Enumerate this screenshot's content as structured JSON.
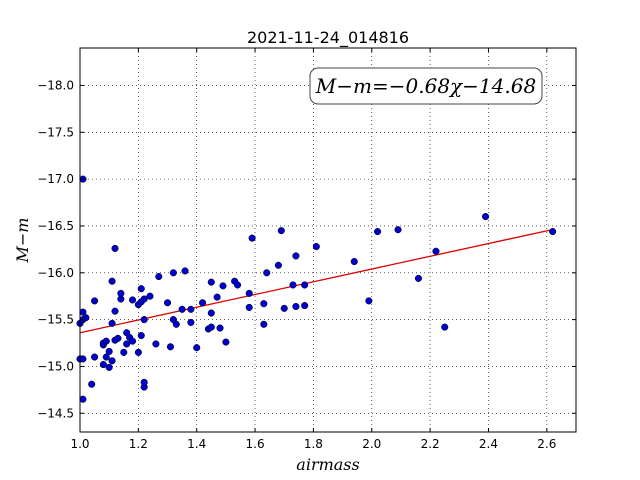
{
  "chart_data": {
    "type": "scatter",
    "title": "2021-11-24_014816",
    "xlabel": "airmass",
    "ylabel": "M−m",
    "xlim": [
      1.0,
      2.7
    ],
    "ylim": [
      -18.4,
      -14.3
    ],
    "y_inverted": true,
    "grid": true,
    "xticks": [
      1.0,
      1.2,
      1.4,
      1.6,
      1.8,
      2.0,
      2.2,
      2.4,
      2.6
    ],
    "xtick_labels": [
      "1.0",
      "1.2",
      "1.4",
      "1.6",
      "1.8",
      "2.0",
      "2.2",
      "2.4",
      "2.6"
    ],
    "yticks": [
      -14.5,
      -15.0,
      -15.5,
      -16.0,
      -16.5,
      -17.0,
      -17.5,
      -18.0
    ],
    "ytick_labels": [
      "−14.5",
      "−15.0",
      "−15.5",
      "−16.0",
      "−16.5",
      "−17.0",
      "−17.5",
      "−18.0"
    ],
    "annotation": "M−m=−0.68χ−14.68",
    "fit": {
      "slope": -0.68,
      "intercept": -14.68,
      "x_range": [
        1.0,
        2.625
      ],
      "color": "#dd0000"
    },
    "point_color": "#0000cc",
    "points": [
      [
        1.01,
        -14.65
      ],
      [
        1.04,
        -14.81
      ],
      [
        1.0,
        -15.08
      ],
      [
        1.01,
        -15.08
      ],
      [
        1.05,
        -15.1
      ],
      [
        1.1,
        -14.99
      ],
      [
        1.08,
        -15.02
      ],
      [
        1.11,
        -15.06
      ],
      [
        1.09,
        -15.1
      ],
      [
        1.1,
        -15.16
      ],
      [
        1.08,
        -15.23
      ],
      [
        1.08,
        -15.25
      ],
      [
        1.09,
        -15.27
      ],
      [
        1.12,
        -15.28
      ],
      [
        1.13,
        -15.3
      ],
      [
        1.0,
        -15.46
      ],
      [
        1.01,
        -15.5
      ],
      [
        1.02,
        -15.52
      ],
      [
        1.01,
        -15.58
      ],
      [
        1.05,
        -15.7
      ],
      [
        1.11,
        -15.46
      ],
      [
        1.12,
        -15.59
      ],
      [
        1.14,
        -15.72
      ],
      [
        1.14,
        -15.78
      ],
      [
        1.11,
        -15.91
      ],
      [
        1.12,
        -16.26
      ],
      [
        1.01,
        -17.0
      ],
      [
        1.15,
        -15.15
      ],
      [
        1.16,
        -15.24
      ],
      [
        1.17,
        -15.31
      ],
      [
        1.18,
        -15.27
      ],
      [
        1.2,
        -15.15
      ],
      [
        1.16,
        -15.36
      ],
      [
        1.21,
        -15.33
      ],
      [
        1.22,
        -15.5
      ],
      [
        1.22,
        -14.78
      ],
      [
        1.22,
        -14.83
      ],
      [
        1.2,
        -15.66
      ],
      [
        1.21,
        -15.69
      ],
      [
        1.22,
        -15.72
      ],
      [
        1.24,
        -15.75
      ],
      [
        1.18,
        -15.71
      ],
      [
        1.21,
        -15.83
      ],
      [
        1.26,
        -15.24
      ],
      [
        1.31,
        -15.21
      ],
      [
        1.27,
        -15.96
      ],
      [
        1.3,
        -15.68
      ],
      [
        1.32,
        -15.5
      ],
      [
        1.33,
        -15.45
      ],
      [
        1.35,
        -15.61
      ],
      [
        1.38,
        -15.47
      ],
      [
        1.4,
        -15.2
      ],
      [
        1.38,
        -15.61
      ],
      [
        1.42,
        -15.68
      ],
      [
        1.32,
        -16.0
      ],
      [
        1.36,
        -16.02
      ],
      [
        1.44,
        -15.4
      ],
      [
        1.45,
        -15.42
      ],
      [
        1.48,
        -15.41
      ],
      [
        1.45,
        -15.57
      ],
      [
        1.47,
        -15.74
      ],
      [
        1.5,
        -15.26
      ],
      [
        1.49,
        -15.86
      ],
      [
        1.45,
        -15.9
      ],
      [
        1.53,
        -15.91
      ],
      [
        1.54,
        -15.87
      ],
      [
        1.58,
        -15.63
      ],
      [
        1.58,
        -15.78
      ],
      [
        1.63,
        -15.45
      ],
      [
        1.63,
        -15.67
      ],
      [
        1.59,
        -16.37
      ],
      [
        1.64,
        -16.0
      ],
      [
        1.68,
        -16.08
      ],
      [
        1.69,
        -16.45
      ],
      [
        1.7,
        -15.62
      ],
      [
        1.74,
        -15.64
      ],
      [
        1.77,
        -15.65
      ],
      [
        1.73,
        -15.87
      ],
      [
        1.77,
        -15.87
      ],
      [
        1.74,
        -16.18
      ],
      [
        1.81,
        -16.28
      ],
      [
        1.94,
        -16.12
      ],
      [
        1.99,
        -15.7
      ],
      [
        2.02,
        -16.44
      ],
      [
        2.09,
        -16.46
      ],
      [
        2.16,
        -15.94
      ],
      [
        2.22,
        -16.23
      ],
      [
        2.25,
        -15.42
      ],
      [
        2.39,
        -16.6
      ],
      [
        2.62,
        -16.44
      ]
    ]
  }
}
